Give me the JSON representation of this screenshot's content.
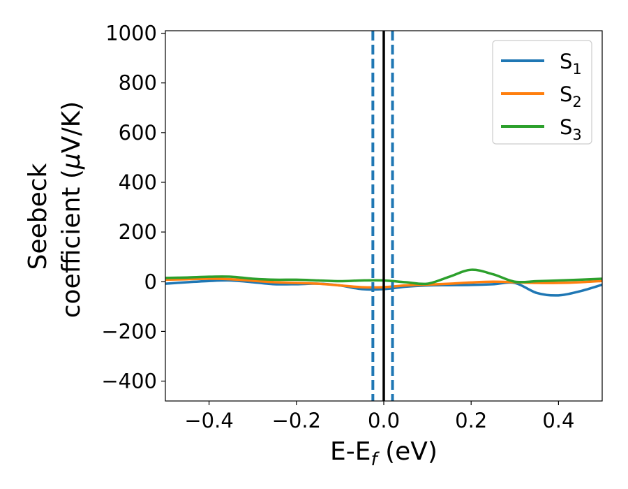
{
  "chart_data": {
    "type": "line",
    "title": "",
    "xlabel": {
      "main": "E-E",
      "sub": "f",
      "suffix": " (eV)"
    },
    "ylabel": {
      "line1": "Seebeck",
      "line2_text": "coefficient  (",
      "line2_mu": "μ",
      "line2_unit": "V/K)"
    },
    "xlim": [
      -0.5,
      0.5
    ],
    "ylim": [
      -480,
      1010
    ],
    "xticks": [
      -0.4,
      -0.2,
      0.0,
      0.2,
      0.4
    ],
    "xtick_labels": [
      "−0.4",
      "−0.2",
      "0.0",
      "0.2",
      "0.4"
    ],
    "yticks": [
      -400,
      -200,
      0,
      200,
      400,
      600,
      800,
      1000
    ],
    "ytick_labels": [
      "−400",
      "−200",
      "0",
      "200",
      "400",
      "600",
      "800",
      "1000"
    ],
    "grid": false,
    "legend_position": "top-right",
    "vertical_lines": [
      {
        "x": 0.0,
        "style": "solid",
        "color": "#000000"
      },
      {
        "x": -0.025,
        "style": "dashed",
        "color": "#1f77b4"
      },
      {
        "x": 0.02,
        "style": "dashed",
        "color": "#1f77b4"
      }
    ],
    "x": [
      -0.5,
      -0.45,
      -0.4,
      -0.35,
      -0.3,
      -0.25,
      -0.2,
      -0.15,
      -0.1,
      -0.05,
      0.0,
      0.05,
      0.1,
      0.15,
      0.2,
      0.25,
      0.3,
      0.35,
      0.4,
      0.45,
      0.5
    ],
    "series": [
      {
        "name": "S",
        "sub": "1",
        "color": "#1f77b4",
        "values": [
          -8,
          -2,
          3,
          5,
          -2,
          -10,
          -10,
          -8,
          -15,
          -30,
          -30,
          -20,
          -15,
          -14,
          -13,
          -10,
          -5,
          -45,
          -55,
          -38,
          -12
        ]
      },
      {
        "name": "S",
        "sub": "2",
        "color": "#ff7f0e",
        "values": [
          8,
          10,
          12,
          10,
          4,
          -2,
          -5,
          -8,
          -15,
          -22,
          -22,
          -15,
          -12,
          -8,
          -3,
          0,
          -2,
          -5,
          -5,
          -2,
          3
        ]
      },
      {
        "name": "S",
        "sub": "3",
        "color": "#2ca02c",
        "values": [
          15,
          17,
          20,
          20,
          12,
          8,
          8,
          5,
          2,
          5,
          5,
          -2,
          -8,
          20,
          48,
          30,
          0,
          2,
          5,
          8,
          12
        ]
      }
    ]
  }
}
